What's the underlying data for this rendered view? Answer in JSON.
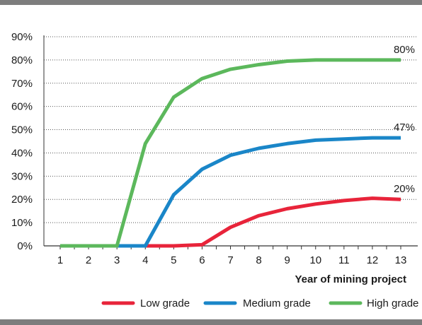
{
  "chart_data": {
    "type": "line",
    "title": "",
    "xlabel": "Year of mining project",
    "ylabel": "",
    "x": [
      1,
      2,
      3,
      4,
      5,
      6,
      7,
      8,
      9,
      10,
      11,
      12,
      13
    ],
    "y_ticks": [
      "0%",
      "10%",
      "20%",
      "30%",
      "40%",
      "50%",
      "60%",
      "70%",
      "80%",
      "90%"
    ],
    "ylim": [
      0,
      90
    ],
    "xlim": [
      1,
      13
    ],
    "grid": "horizontal dotted",
    "legend_position": "bottom-right",
    "series": [
      {
        "name": "Low grade",
        "color": "#e8243a",
        "values": [
          0,
          0,
          0,
          0,
          0,
          0.5,
          8,
          13,
          16,
          18,
          19.5,
          20.5,
          20
        ],
        "end_label": "20%"
      },
      {
        "name": "Medium grade",
        "color": "#1a86c8",
        "values": [
          0,
          0,
          0,
          0,
          22,
          33,
          39,
          42,
          44,
          45.5,
          46,
          46.5,
          46.5
        ],
        "end_label": "47%"
      },
      {
        "name": "High grade",
        "color": "#5cb85c",
        "values": [
          0,
          0,
          0,
          44,
          64,
          72,
          76,
          78,
          79.5,
          80,
          80,
          80,
          80
        ],
        "end_label": "80%"
      }
    ]
  }
}
